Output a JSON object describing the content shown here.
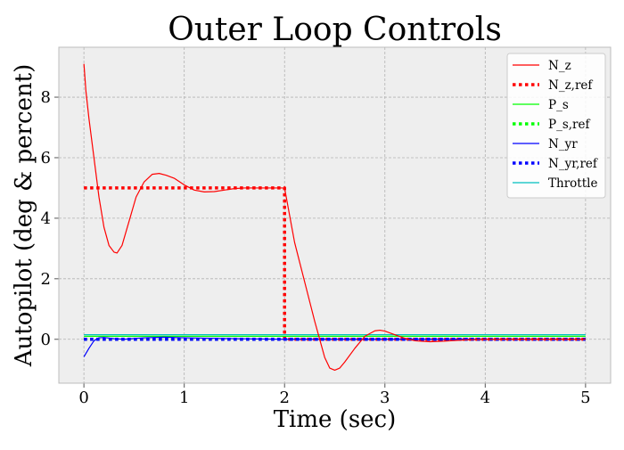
{
  "chart_data": {
    "type": "line",
    "title": "Outer Loop Controls",
    "xlabel": "Time (sec)",
    "ylabel": "Autopilot (deg & percent)",
    "xlim": [
      -0.25,
      5.25
    ],
    "ylim": [
      -1.45,
      9.65
    ],
    "xticks": [
      0,
      1,
      2,
      3,
      4,
      5
    ],
    "yticks": [
      0,
      2,
      4,
      6,
      8
    ],
    "grid": true,
    "legend_position": "upper-right",
    "series": [
      {
        "name": "N_z",
        "color": "#ff0000",
        "style": "solid",
        "x": [
          0,
          0.02,
          0.05,
          0.1,
          0.15,
          0.2,
          0.25,
          0.3,
          0.33,
          0.38,
          0.45,
          0.52,
          0.6,
          0.68,
          0.75,
          0.82,
          0.9,
          1.0,
          1.1,
          1.2,
          1.3,
          1.4,
          1.5,
          1.6,
          1.7,
          1.8,
          1.9,
          2.0,
          2.05,
          2.1,
          2.2,
          2.3,
          2.4,
          2.45,
          2.5,
          2.55,
          2.6,
          2.7,
          2.8,
          2.9,
          2.95,
          3.0,
          3.1,
          3.2,
          3.3,
          3.45,
          3.6,
          3.8,
          4.0,
          4.3,
          4.6,
          5.0
        ],
        "y": [
          9.1,
          8.2,
          7.3,
          6.0,
          4.7,
          3.7,
          3.1,
          2.88,
          2.85,
          3.1,
          3.9,
          4.7,
          5.2,
          5.45,
          5.48,
          5.42,
          5.32,
          5.1,
          4.93,
          4.87,
          4.88,
          4.93,
          4.98,
          5.0,
          5.0,
          5.0,
          5.0,
          5.0,
          4.1,
          3.2,
          1.9,
          0.6,
          -0.6,
          -0.95,
          -1.02,
          -0.95,
          -0.75,
          -0.3,
          0.1,
          0.28,
          0.3,
          0.27,
          0.15,
          0.03,
          -0.05,
          -0.08,
          -0.06,
          -0.02,
          0.0,
          0.0,
          0.0,
          0.0
        ]
      },
      {
        "name": "N_z,ref",
        "color": "#ff0000",
        "style": "dotted",
        "x": [
          0,
          2.0,
          2.0,
          5.0
        ],
        "y": [
          5,
          5,
          0,
          0
        ]
      },
      {
        "name": "P_s",
        "color": "#00ff00",
        "style": "solid",
        "x": [
          0,
          5
        ],
        "y": [
          0.1,
          0.1
        ]
      },
      {
        "name": "P_s,ref",
        "color": "#00ff00",
        "style": "dotted",
        "x": [
          0,
          5
        ],
        "y": [
          0,
          0
        ]
      },
      {
        "name": "N_yr",
        "color": "#0000ff",
        "style": "solid",
        "x": [
          0,
          0.05,
          0.1,
          0.15,
          0.2,
          0.3,
          0.4,
          0.6,
          0.8,
          1.0,
          1.5,
          2.0,
          3.0,
          4.0,
          5.0
        ],
        "y": [
          -0.58,
          -0.3,
          -0.05,
          0.05,
          0.06,
          0.02,
          0.0,
          0.05,
          0.07,
          0.05,
          0.02,
          0.0,
          0.0,
          0.0,
          0.0
        ]
      },
      {
        "name": "N_yr,ref",
        "color": "#0000ff",
        "style": "dotted",
        "x": [
          0,
          5
        ],
        "y": [
          0,
          0
        ]
      },
      {
        "name": "Throttle",
        "color": "#00bfbf",
        "style": "solid",
        "x": [
          0,
          5
        ],
        "y": [
          0.15,
          0.15
        ]
      }
    ]
  }
}
